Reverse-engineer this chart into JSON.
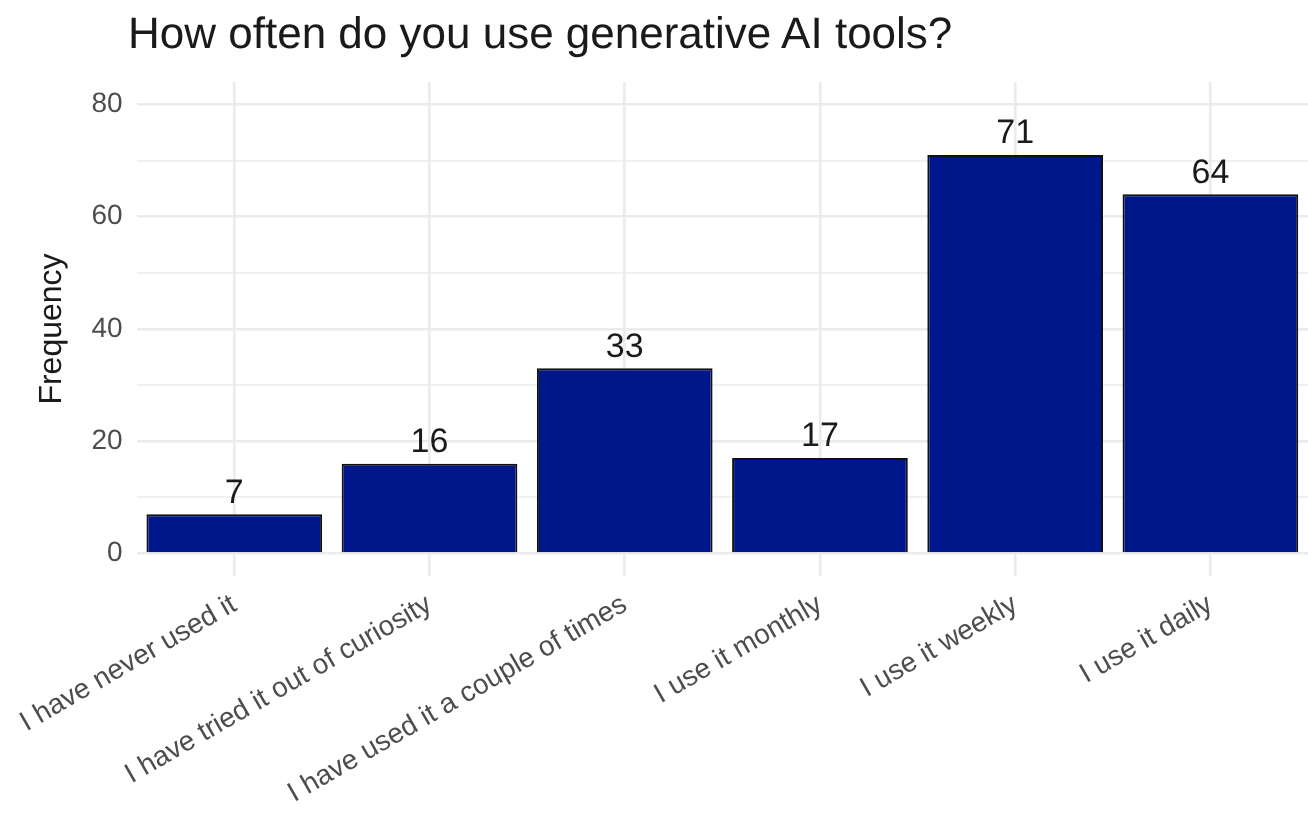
{
  "chart_data": {
    "type": "bar",
    "title": "How often do you use generative AI tools?",
    "ylabel": "Frequency",
    "categories": [
      "I have never used it",
      "I have tried it out of curiosity",
      "I have used it a couple of times",
      "I use it monthly",
      "I use it weekly",
      "I use it daily"
    ],
    "values": [
      7,
      16,
      33,
      17,
      71,
      64
    ],
    "color": "#00178c",
    "ylim": [
      -4,
      84
    ],
    "yticks": [
      0,
      {
        "value": 10,
        "label": null
      },
      20,
      {
        "value": 30,
        "label": null
      },
      40,
      {
        "value": 50,
        "label": null
      },
      60,
      {
        "value": 70,
        "label": null
      },
      80
    ],
    "grid": true,
    "data_labels": true
  }
}
